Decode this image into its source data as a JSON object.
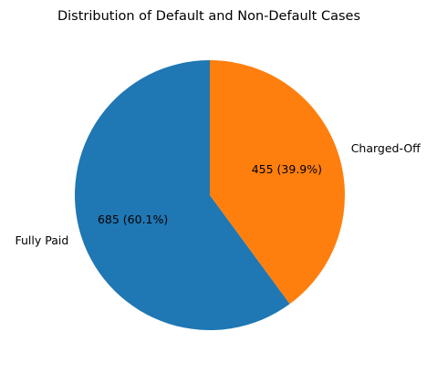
{
  "chart_data": {
    "type": "pie",
    "title": "Distribution of Default and Non-Default Cases",
    "categories": [
      "Fully Paid",
      "Charged-Off"
    ],
    "values": [
      685,
      455
    ],
    "percent_labels": [
      "685 (60.1%)",
      "455 (39.9%)"
    ],
    "colors": [
      "#1f77b4",
      "#ff7f0e"
    ],
    "start_angle_deg": 90,
    "direction": "counterclockwise"
  }
}
